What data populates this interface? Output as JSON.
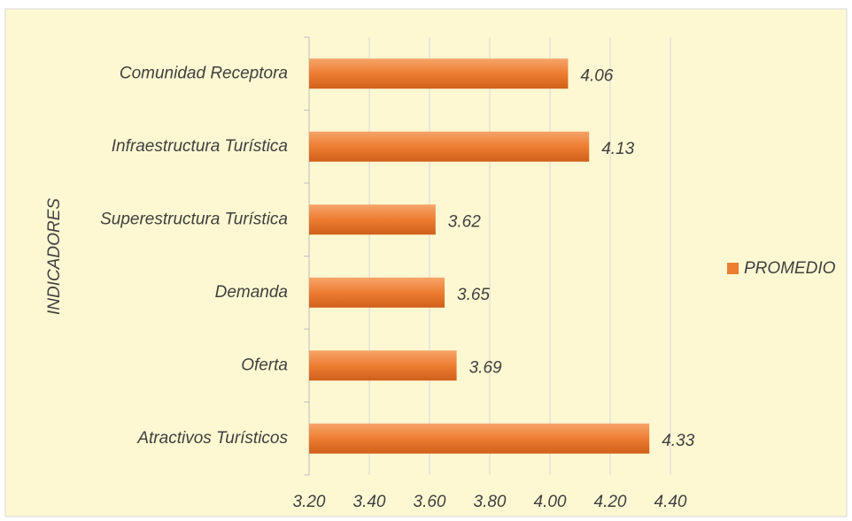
{
  "chart_data": {
    "type": "bar",
    "orientation": "horizontal",
    "y_axis_label": "INDICADORES",
    "categories": [
      "Comunidad Receptora",
      "Infraestructura Turística",
      "Superestructura Turística",
      "Demanda",
      "Oferta",
      "Atractivos Turísticos"
    ],
    "series": [
      {
        "name": "PROMEDIO",
        "color": "#ed7d31",
        "values": [
          4.06,
          4.13,
          3.62,
          3.65,
          3.69,
          4.33
        ]
      }
    ],
    "xlim": [
      3.2,
      4.4
    ],
    "xticks": [
      {
        "value": 3.2,
        "label": "3.20"
      },
      {
        "value": 3.4,
        "label": "3.40"
      },
      {
        "value": 3.6,
        "label": "3.60"
      },
      {
        "value": 3.8,
        "label": "3.80"
      },
      {
        "value": 4.0,
        "label": "4.00"
      },
      {
        "value": 4.2,
        "label": "4.20"
      },
      {
        "value": 4.4,
        "label": "4.40"
      }
    ],
    "grid": true,
    "legend": "right"
  }
}
